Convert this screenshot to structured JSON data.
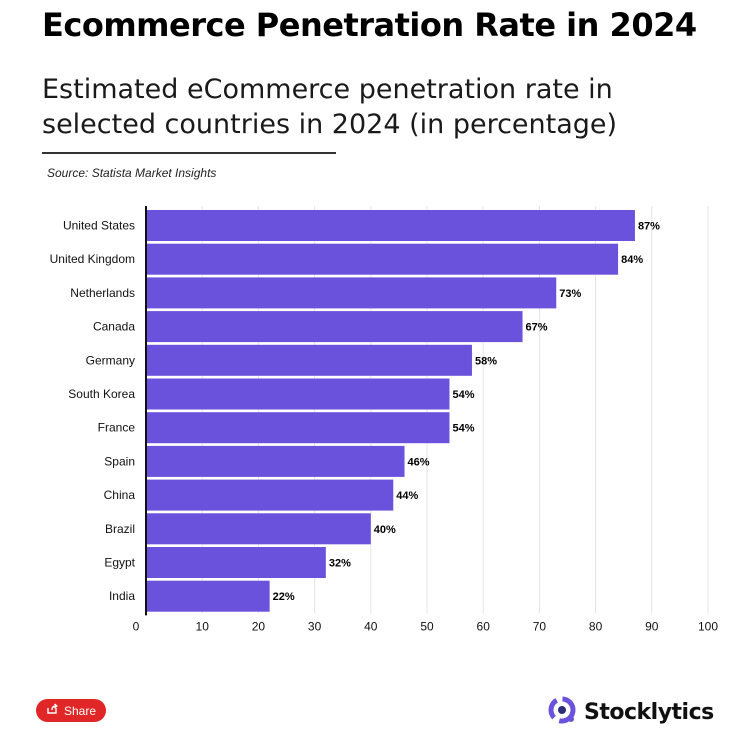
{
  "header": {
    "title": "Ecommerce Penetration Rate in 2024",
    "subtitle": "Estimated eCommerce penetration rate in selected countries in 2024 (in percentage)",
    "source": "Source: Statista Market Insights"
  },
  "footer": {
    "share_label": "Share",
    "brand": "Stocklytics"
  },
  "colors": {
    "bar": "#6b52dc",
    "share_button": "#e02626",
    "brand_accent": "#6b52dc"
  },
  "chart_data": {
    "type": "bar",
    "orientation": "horizontal",
    "categories": [
      "United States",
      "United Kingdom",
      "Netherlands",
      "Canada",
      "Germany",
      "South Korea",
      "France",
      "Spain",
      "China",
      "Brazil",
      "Egypt",
      "India"
    ],
    "values": [
      87,
      84,
      73,
      67,
      58,
      54,
      54,
      46,
      44,
      40,
      32,
      22
    ],
    "value_labels": [
      "87%",
      "84%",
      "73%",
      "67%",
      "58%",
      "54%",
      "54%",
      "46%",
      "44%",
      "40%",
      "32%",
      "22%"
    ],
    "xlim": [
      0,
      100
    ],
    "xticks": [
      0,
      10,
      20,
      30,
      40,
      50,
      60,
      70,
      80,
      90,
      100
    ],
    "grid": true
  }
}
